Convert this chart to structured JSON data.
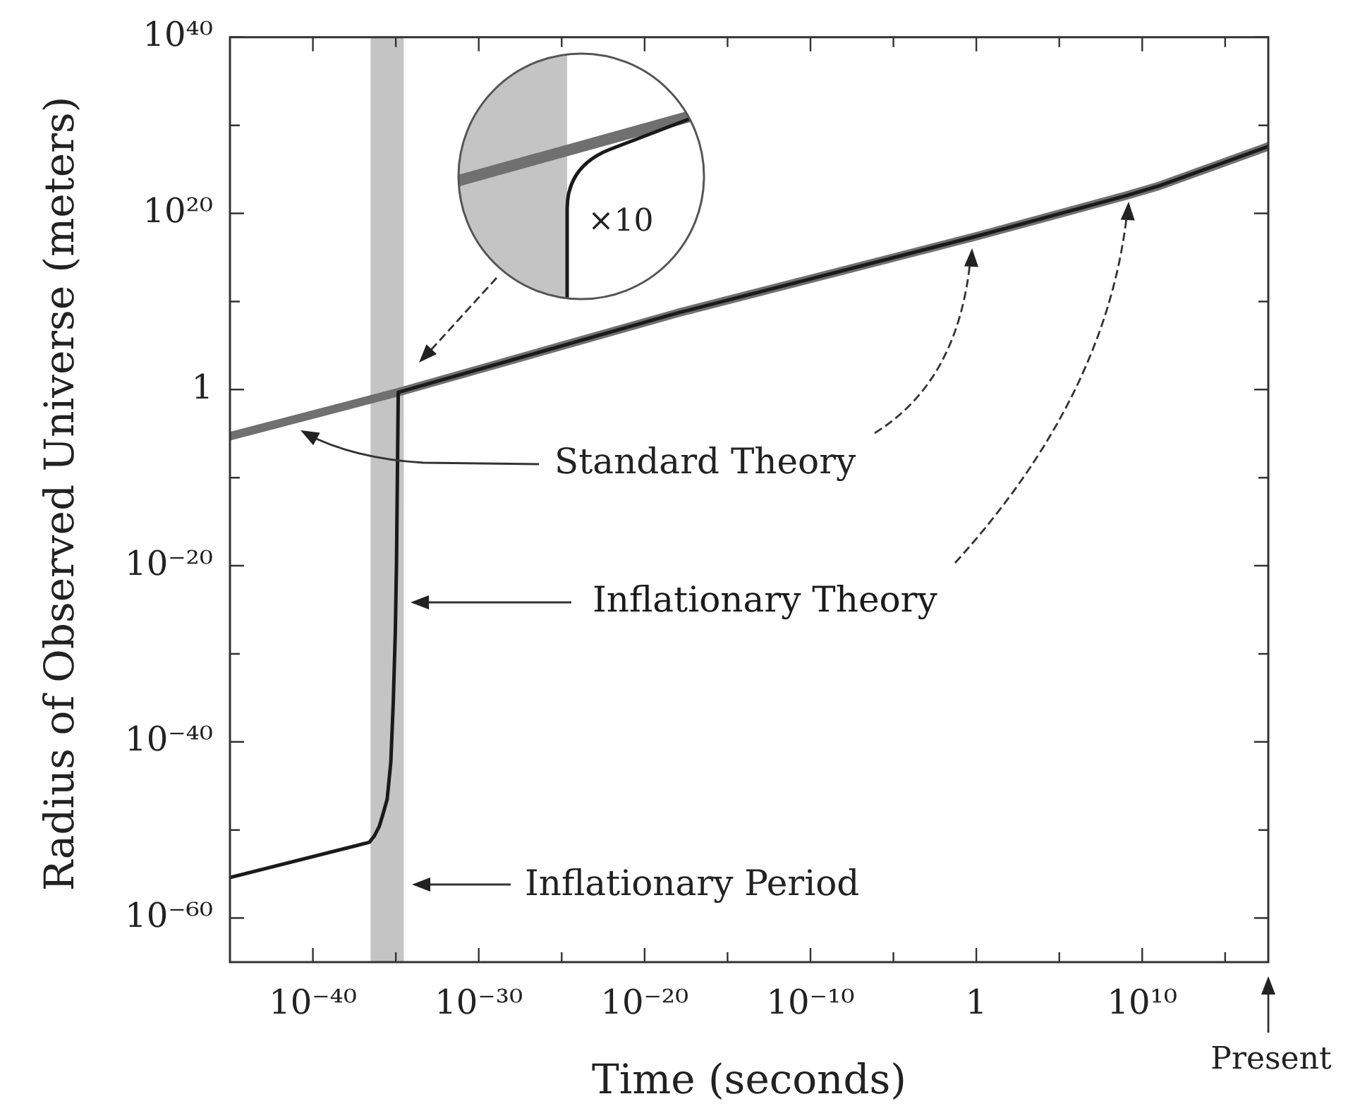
{
  "chart_data": {
    "type": "line",
    "xlabel": "Time (seconds)",
    "ylabel": "Radius of Observed Universe (meters)",
    "log": "xy",
    "grid": false,
    "legend": false,
    "marker": "none",
    "line_style": "solid",
    "xlim": [
      1e-45,
      4e+17
    ],
    "ylim": [
      1e-65,
      1e+40
    ],
    "xticks": [
      {
        "value": 1e-40,
        "label": "10⁻⁴⁰"
      },
      {
        "value": 1e-35,
        "label": null
      },
      {
        "value": 1e-30,
        "label": "10⁻³⁰"
      },
      {
        "value": 1e-25,
        "label": null
      },
      {
        "value": 1e-20,
        "label": "10⁻²⁰"
      },
      {
        "value": 1e-15,
        "label": null
      },
      {
        "value": 1e-10,
        "label": "10⁻¹⁰"
      },
      {
        "value": 1e-05,
        "label": null
      },
      1,
      {
        "value": 100000.0,
        "label": null
      },
      {
        "value": 10000000000.0,
        "label": "10¹⁰"
      },
      {
        "value": 1000000000000000.0,
        "label": null
      }
    ],
    "yticks": [
      {
        "value": 1e-60,
        "label": "10⁻⁶⁰"
      },
      {
        "value": 1e-50,
        "label": null
      },
      {
        "value": 1e-40,
        "label": "10⁻⁴⁰"
      },
      {
        "value": 1e-30,
        "label": null
      },
      {
        "value": 1e-20,
        "label": "10⁻²⁰"
      },
      {
        "value": 1e-10,
        "label": null
      },
      1,
      {
        "value": 10000000000.0,
        "label": null
      },
      {
        "value": 1e+20,
        "label": "10²⁰"
      },
      {
        "value": 1e+30,
        "label": null
      },
      {
        "value": 1e+40,
        "label": "10⁴⁰"
      }
    ],
    "series": [
      {
        "name": "Standard Theory",
        "color": "#707070",
        "x": [
          1e-45,
          1.4e-35,
          1e-18,
          1,
          1000000000.0,
          100000000000.0,
          4e+17
        ],
        "values": [
          5e-06,
          0.5,
          500000000.0,
          2.5e+17,
          1e+22,
          1.3e+23,
          4e+27
        ]
      },
      {
        "name": "Inflationary Theory",
        "color": "#1a1a1a",
        "x": [
          1e-45,
          2.5e-37,
          5e-37,
          1e-36,
          1.8e-36,
          3e-36,
          5e-36,
          7e-36,
          9.3e-36,
          1.1e-35,
          1.4e-35,
          1e-18,
          1,
          1000000000.0,
          100000000000.0,
          4e+17
        ],
        "values": [
          4e-56,
          4e-52,
          2e-51,
          2.5e-50,
          1e-48,
          3e-47,
          5e-43,
          3e-36,
          2.5e-28,
          2e-20,
          0.5,
          500000000.0,
          2.5e+17,
          1e+22,
          1.3e+23,
          4e+27
        ]
      }
    ],
    "bands": [
      {
        "axis": "x",
        "from": 3e-37,
        "to": 3e-35,
        "label": "Inflationary Period",
        "color": "#c4c4c4"
      }
    ],
    "annotations": [
      "×10",
      "Present"
    ]
  }
}
